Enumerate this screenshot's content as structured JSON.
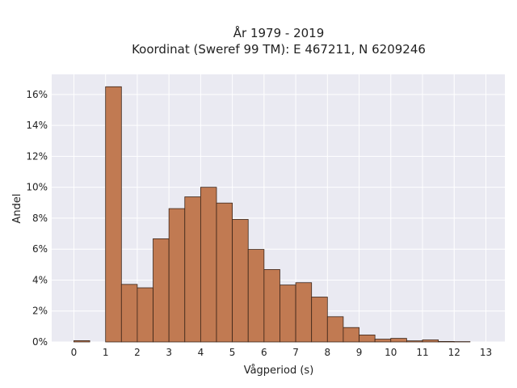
{
  "chart_data": {
    "type": "bar",
    "title": "År 1979 - 2019",
    "subtitle": "Koordinat (Sweref 99 TM): E 467211, N 6209246",
    "xlabel": "Vågperiod (s)",
    "ylabel": "Andel",
    "xlim": [
      -0.7,
      13.6
    ],
    "ylim": [
      0,
      0.173
    ],
    "grid": true,
    "bar_width": 0.5,
    "bar_color": "#c17a52",
    "bar_edge_color": "#3a2418",
    "background_color": "#eaeaf2",
    "xticks": [
      {
        "value": 0,
        "label": "0"
      },
      {
        "value": 1,
        "label": "1"
      },
      {
        "value": 2,
        "label": "2"
      },
      {
        "value": 3,
        "label": "3"
      },
      {
        "value": 4,
        "label": "4"
      },
      {
        "value": 5,
        "label": "5"
      },
      {
        "value": 6,
        "label": "6"
      },
      {
        "value": 7,
        "label": "7"
      },
      {
        "value": 8,
        "label": "8"
      },
      {
        "value": 9,
        "label": "9"
      },
      {
        "value": 10,
        "label": "10"
      },
      {
        "value": 11,
        "label": "11"
      },
      {
        "value": 12,
        "label": "12"
      },
      {
        "value": 13,
        "label": "13"
      }
    ],
    "yticks": [
      {
        "value": 0,
        "label": "0%"
      },
      {
        "value": 0.02,
        "label": "2%"
      },
      {
        "value": 0.04,
        "label": "4%"
      },
      {
        "value": 0.06,
        "label": "6%"
      },
      {
        "value": 0.08,
        "label": "8%"
      },
      {
        "value": 0.1,
        "label": "10%"
      },
      {
        "value": 0.12,
        "label": "12%"
      },
      {
        "value": 0.14,
        "label": "14%"
      },
      {
        "value": 0.16,
        "label": "16%"
      }
    ],
    "bins": [
      {
        "x": 0.0,
        "value": 0.0008
      },
      {
        "x": 1.0,
        "value": 0.165
      },
      {
        "x": 1.5,
        "value": 0.0372
      },
      {
        "x": 2.0,
        "value": 0.035
      },
      {
        "x": 2.5,
        "value": 0.0667
      },
      {
        "x": 3.0,
        "value": 0.0862
      },
      {
        "x": 3.5,
        "value": 0.0938
      },
      {
        "x": 4.0,
        "value": 0.1
      },
      {
        "x": 4.5,
        "value": 0.0898
      },
      {
        "x": 5.0,
        "value": 0.0792
      },
      {
        "x": 5.5,
        "value": 0.0598
      },
      {
        "x": 6.0,
        "value": 0.0468
      },
      {
        "x": 6.5,
        "value": 0.0368
      },
      {
        "x": 7.0,
        "value": 0.0383
      },
      {
        "x": 7.5,
        "value": 0.029
      },
      {
        "x": 8.0,
        "value": 0.0163
      },
      {
        "x": 8.5,
        "value": 0.0093
      },
      {
        "x": 9.0,
        "value": 0.0045
      },
      {
        "x": 9.5,
        "value": 0.0018
      },
      {
        "x": 10.0,
        "value": 0.0023
      },
      {
        "x": 10.5,
        "value": 0.0007
      },
      {
        "x": 11.0,
        "value": 0.0013
      },
      {
        "x": 11.5,
        "value": 0.0003
      },
      {
        "x": 12.0,
        "value": 0.0002
      }
    ]
  }
}
